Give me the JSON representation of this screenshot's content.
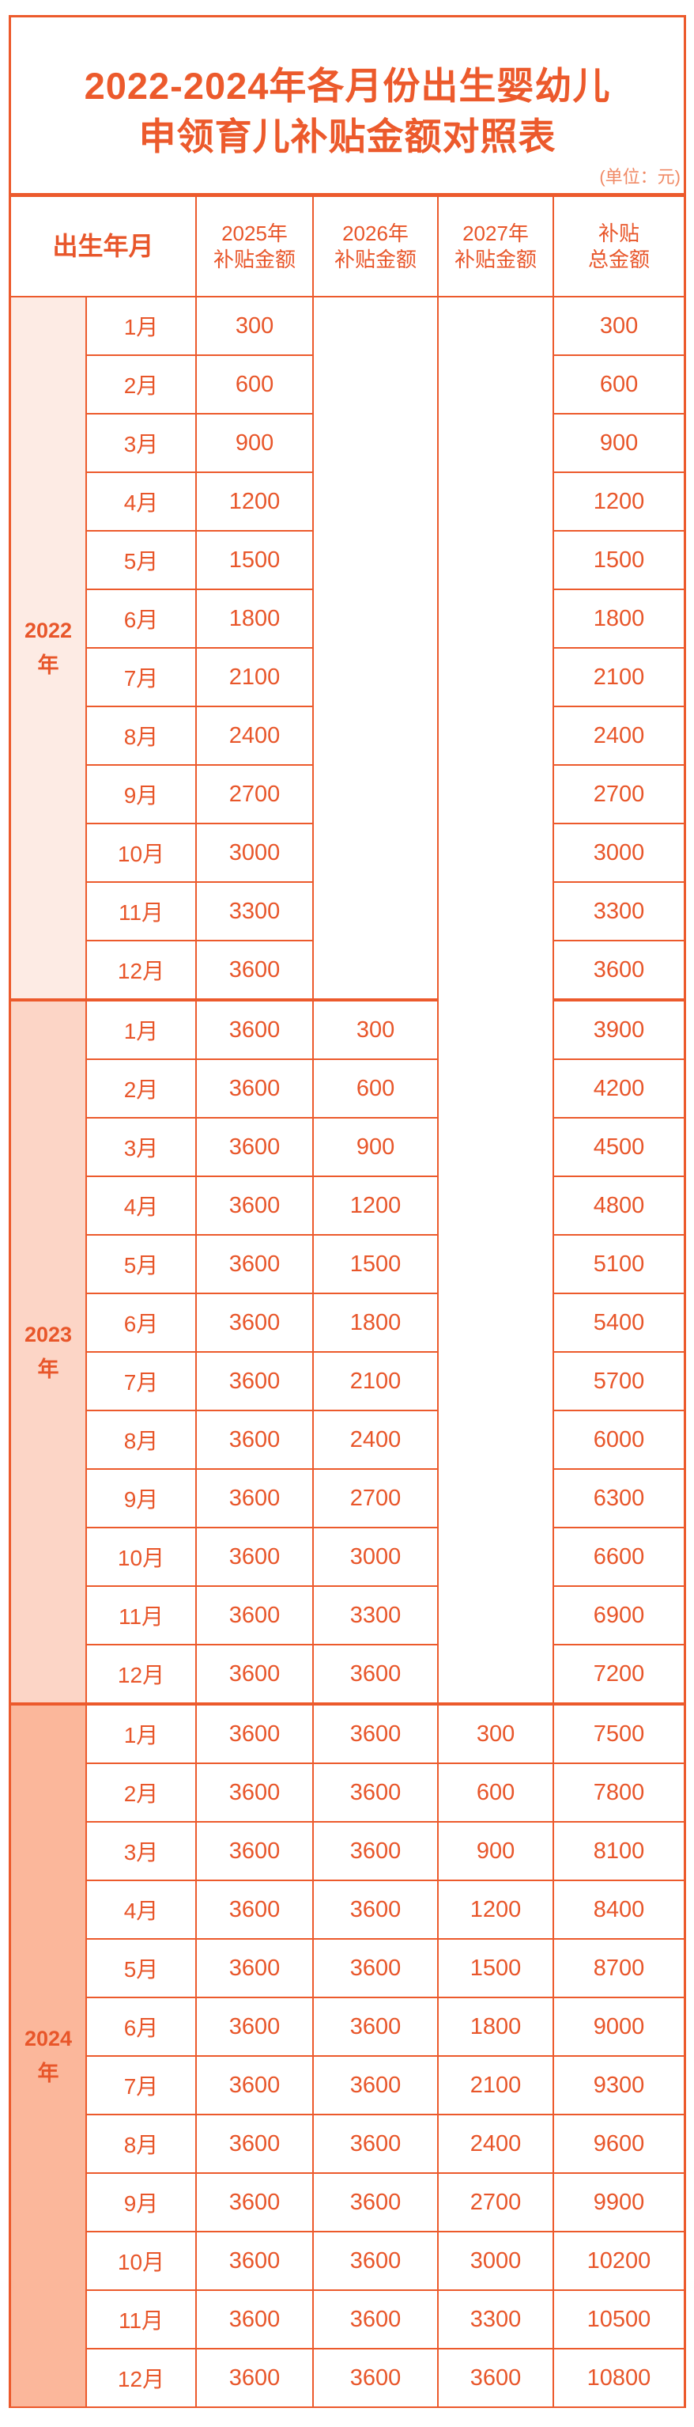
{
  "title": {
    "line1": "2022-2024年各月份出生婴幼儿",
    "line2": "申领育儿补贴金额对照表",
    "unit": "(单位：元)"
  },
  "headers": {
    "birth": "出生年月",
    "y2025": [
      "2025年",
      "补贴金额"
    ],
    "y2026": [
      "2026年",
      "补贴金额"
    ],
    "y2027": [
      "2027年",
      "补贴金额"
    ],
    "total": [
      "补贴",
      "总金额"
    ]
  },
  "colors": {
    "accent": "#ec5a2c",
    "year_2022_bg": "#fdebe4",
    "year_2023_bg": "#fcd5c6",
    "year_2024_bg": "#fbb79b"
  },
  "blocks": [
    {
      "year": "2022",
      "suffix": "年",
      "rows": [
        {
          "month": "1月",
          "y2025": "300",
          "y2026": null,
          "y2027": null,
          "total": "300"
        },
        {
          "month": "2月",
          "y2025": "600",
          "y2026": null,
          "y2027": null,
          "total": "600"
        },
        {
          "month": "3月",
          "y2025": "900",
          "y2026": null,
          "y2027": null,
          "total": "900"
        },
        {
          "month": "4月",
          "y2025": "1200",
          "y2026": null,
          "y2027": null,
          "total": "1200"
        },
        {
          "month": "5月",
          "y2025": "1500",
          "y2026": null,
          "y2027": null,
          "total": "1500"
        },
        {
          "month": "6月",
          "y2025": "1800",
          "y2026": null,
          "y2027": null,
          "total": "1800"
        },
        {
          "month": "7月",
          "y2025": "2100",
          "y2026": null,
          "y2027": null,
          "total": "2100"
        },
        {
          "month": "8月",
          "y2025": "2400",
          "y2026": null,
          "y2027": null,
          "total": "2400"
        },
        {
          "month": "9月",
          "y2025": "2700",
          "y2026": null,
          "y2027": null,
          "total": "2700"
        },
        {
          "month": "10月",
          "y2025": "3000",
          "y2026": null,
          "y2027": null,
          "total": "3000"
        },
        {
          "month": "11月",
          "y2025": "3300",
          "y2026": null,
          "y2027": null,
          "total": "3300"
        },
        {
          "month": "12月",
          "y2025": "3600",
          "y2026": null,
          "y2027": null,
          "total": "3600"
        }
      ]
    },
    {
      "year": "2023",
      "suffix": "年",
      "rows": [
        {
          "month": "1月",
          "y2025": "3600",
          "y2026": "300",
          "y2027": null,
          "total": "3900"
        },
        {
          "month": "2月",
          "y2025": "3600",
          "y2026": "600",
          "y2027": null,
          "total": "4200"
        },
        {
          "month": "3月",
          "y2025": "3600",
          "y2026": "900",
          "y2027": null,
          "total": "4500"
        },
        {
          "month": "4月",
          "y2025": "3600",
          "y2026": "1200",
          "y2027": null,
          "total": "4800"
        },
        {
          "month": "5月",
          "y2025": "3600",
          "y2026": "1500",
          "y2027": null,
          "total": "5100"
        },
        {
          "month": "6月",
          "y2025": "3600",
          "y2026": "1800",
          "y2027": null,
          "total": "5400"
        },
        {
          "month": "7月",
          "y2025": "3600",
          "y2026": "2100",
          "y2027": null,
          "total": "5700"
        },
        {
          "month": "8月",
          "y2025": "3600",
          "y2026": "2400",
          "y2027": null,
          "total": "6000"
        },
        {
          "month": "9月",
          "y2025": "3600",
          "y2026": "2700",
          "y2027": null,
          "total": "6300"
        },
        {
          "month": "10月",
          "y2025": "3600",
          "y2026": "3000",
          "y2027": null,
          "total": "6600"
        },
        {
          "month": "11月",
          "y2025": "3600",
          "y2026": "3300",
          "y2027": null,
          "total": "6900"
        },
        {
          "month": "12月",
          "y2025": "3600",
          "y2026": "3600",
          "y2027": null,
          "total": "7200"
        }
      ]
    },
    {
      "year": "2024",
      "suffix": "年",
      "rows": [
        {
          "month": "1月",
          "y2025": "3600",
          "y2026": "3600",
          "y2027": "300",
          "total": "7500"
        },
        {
          "month": "2月",
          "y2025": "3600",
          "y2026": "3600",
          "y2027": "600",
          "total": "7800"
        },
        {
          "month": "3月",
          "y2025": "3600",
          "y2026": "3600",
          "y2027": "900",
          "total": "8100"
        },
        {
          "month": "4月",
          "y2025": "3600",
          "y2026": "3600",
          "y2027": "1200",
          "total": "8400"
        },
        {
          "month": "5月",
          "y2025": "3600",
          "y2026": "3600",
          "y2027": "1500",
          "total": "8700"
        },
        {
          "month": "6月",
          "y2025": "3600",
          "y2026": "3600",
          "y2027": "1800",
          "total": "9000"
        },
        {
          "month": "7月",
          "y2025": "3600",
          "y2026": "3600",
          "y2027": "2100",
          "total": "9300"
        },
        {
          "month": "8月",
          "y2025": "3600",
          "y2026": "3600",
          "y2027": "2400",
          "total": "9600"
        },
        {
          "month": "9月",
          "y2025": "3600",
          "y2026": "3600",
          "y2027": "2700",
          "total": "9900"
        },
        {
          "month": "10月",
          "y2025": "3600",
          "y2026": "3600",
          "y2027": "3000",
          "total": "10200"
        },
        {
          "month": "11月",
          "y2025": "3600",
          "y2026": "3600",
          "y2027": "3300",
          "total": "10500"
        },
        {
          "month": "12月",
          "y2025": "3600",
          "y2026": "3600",
          "y2027": "3600",
          "total": "10800"
        }
      ]
    }
  ]
}
